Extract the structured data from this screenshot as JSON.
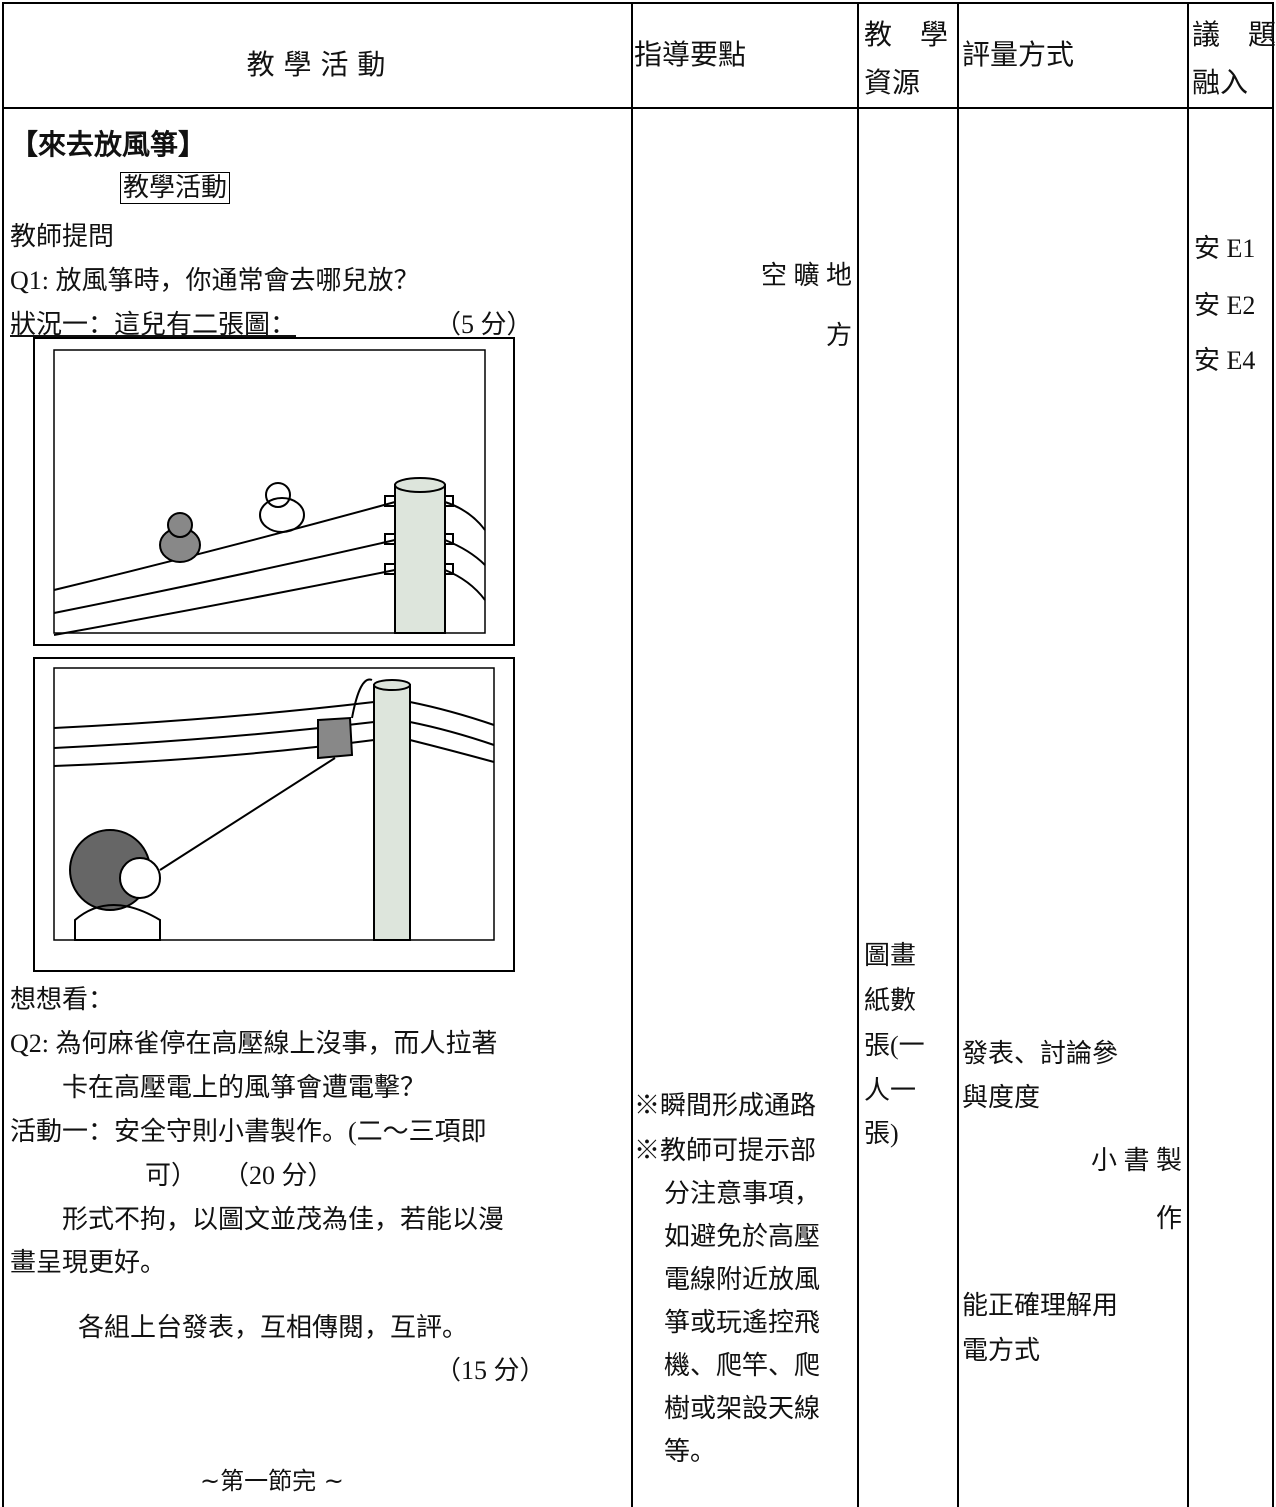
{
  "header": {
    "activity": "教 學 活 動",
    "guidance": "指導要點",
    "resources": [
      "教　學",
      "資源"
    ],
    "assessment": "評量方式",
    "issues": [
      "議　題",
      "融入"
    ]
  },
  "activity": {
    "title": "【來去放風箏】",
    "label": "教學活動",
    "lines": [
      "教師提問",
      "Q1: 放風箏時，你通常會去哪兒放？",
      "狀況一：這兒有二張圖：",
      "（5 分）",
      "想想看：",
      "Q2: 為何麻雀停在高壓線上沒事，而人拉著",
      "卡在高壓電上的風箏會遭電擊？",
      "活動一：安全守則小書製作。(二～三項即",
      "可）　　（20 分）",
      "形式不拘，以圖文並茂為佳，若能以漫",
      "畫呈現更好。",
      "各組上台發表，互相傳閱，互評。",
      "（15 分）",
      "~第一節完 ~"
    ]
  },
  "guidance": {
    "lines": [
      "空 曠 地",
      "方",
      "※瞬間形成通路",
      "※教師可提示部",
      "分注意事項，",
      "如避免於高壓",
      "電線附近放風",
      "箏或玩遙控飛",
      "機、爬竿、爬",
      "樹或架設天線",
      "等。"
    ]
  },
  "resources": {
    "lines": [
      "圖畫",
      "紙數",
      "張(一",
      "人一",
      "張)"
    ]
  },
  "assessment": {
    "lines": [
      "發表、討論參",
      "與度度",
      "小 書 製",
      "作",
      "能正確理解用",
      "電方式"
    ]
  },
  "issues": {
    "lines": [
      "安 E1",
      "安 E2",
      "安 E4"
    ]
  }
}
